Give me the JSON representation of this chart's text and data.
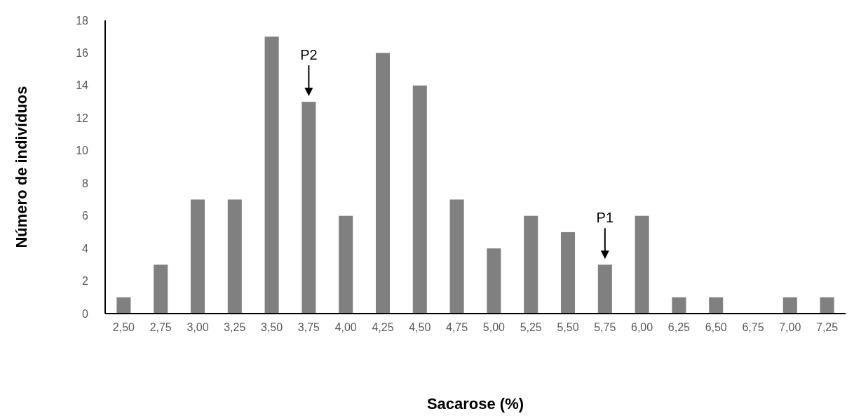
{
  "chart_data": {
    "type": "bar",
    "xlabel": "Sacarose (%)",
    "ylabel": "Número de indivíduos",
    "categories": [
      "2,50",
      "2,75",
      "3,00",
      "3,25",
      "3,50",
      "3,75",
      "4,00",
      "4,25",
      "4,50",
      "4,75",
      "5,00",
      "5,25",
      "5,50",
      "5,75",
      "6,00",
      "6,25",
      "6,50",
      "6,75",
      "7,00",
      "7,25"
    ],
    "values": [
      1,
      3,
      7,
      7,
      17,
      13,
      6,
      16,
      14,
      7,
      4,
      6,
      5,
      3,
      6,
      1,
      1,
      0,
      1,
      1
    ],
    "color": "#808080",
    "ylim": [
      0,
      18
    ],
    "yticks": [
      0,
      2,
      4,
      6,
      8,
      10,
      12,
      14,
      16,
      18
    ],
    "grid": false,
    "annotations": [
      {
        "text": "P2",
        "x": "3,75",
        "y": 13
      },
      {
        "text": "P1",
        "x": "5,75",
        "y": 3
      }
    ]
  }
}
